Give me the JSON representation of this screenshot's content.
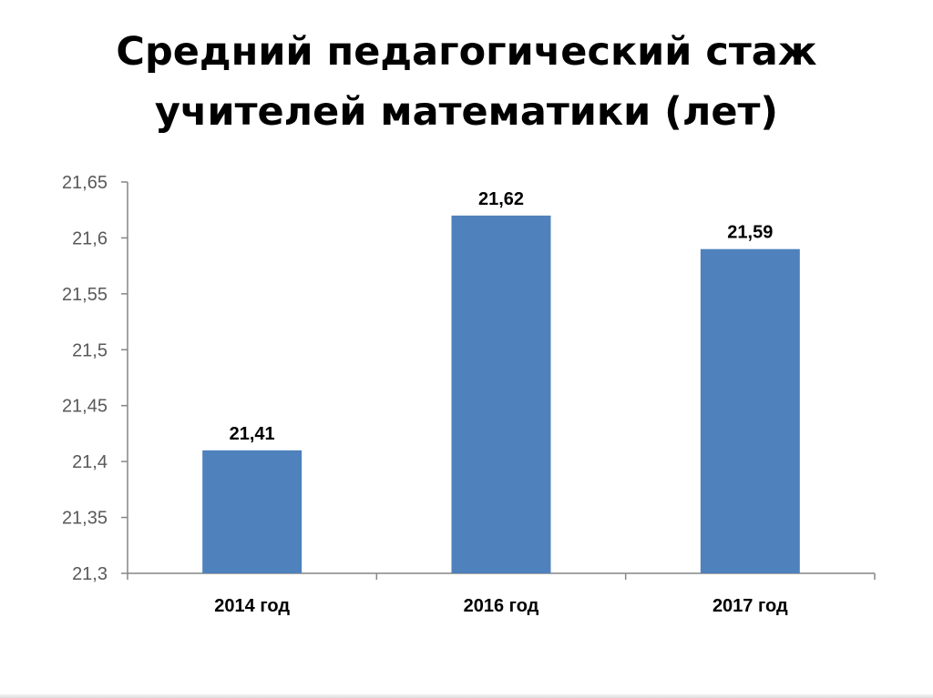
{
  "slide": {
    "title_lines": [
      "Средний педагогический стаж",
      "учителей математики (лет)"
    ]
  },
  "chart_data": {
    "type": "bar",
    "title": "",
    "xlabel": "",
    "ylabel": "",
    "categories": [
      "2014 год",
      "2016 год",
      "2017 год"
    ],
    "values": [
      21.41,
      21.62,
      21.59
    ],
    "data_labels": [
      "21,41",
      "21,62",
      "21,59"
    ],
    "ylim": [
      21.3,
      21.65
    ],
    "yticks": [
      21.3,
      21.35,
      21.4,
      21.45,
      21.5,
      21.55,
      21.6,
      21.65
    ],
    "ytick_labels": [
      "21,3",
      "21,35",
      "21,4",
      "21,45",
      "21,5",
      "21,55",
      "21,6",
      "21,65"
    ],
    "grid": false,
    "legend": "none",
    "colors": {
      "bar": "#4f81bd",
      "axis": "#868686",
      "tick_text": "#595959",
      "label_text": "#000000"
    }
  }
}
